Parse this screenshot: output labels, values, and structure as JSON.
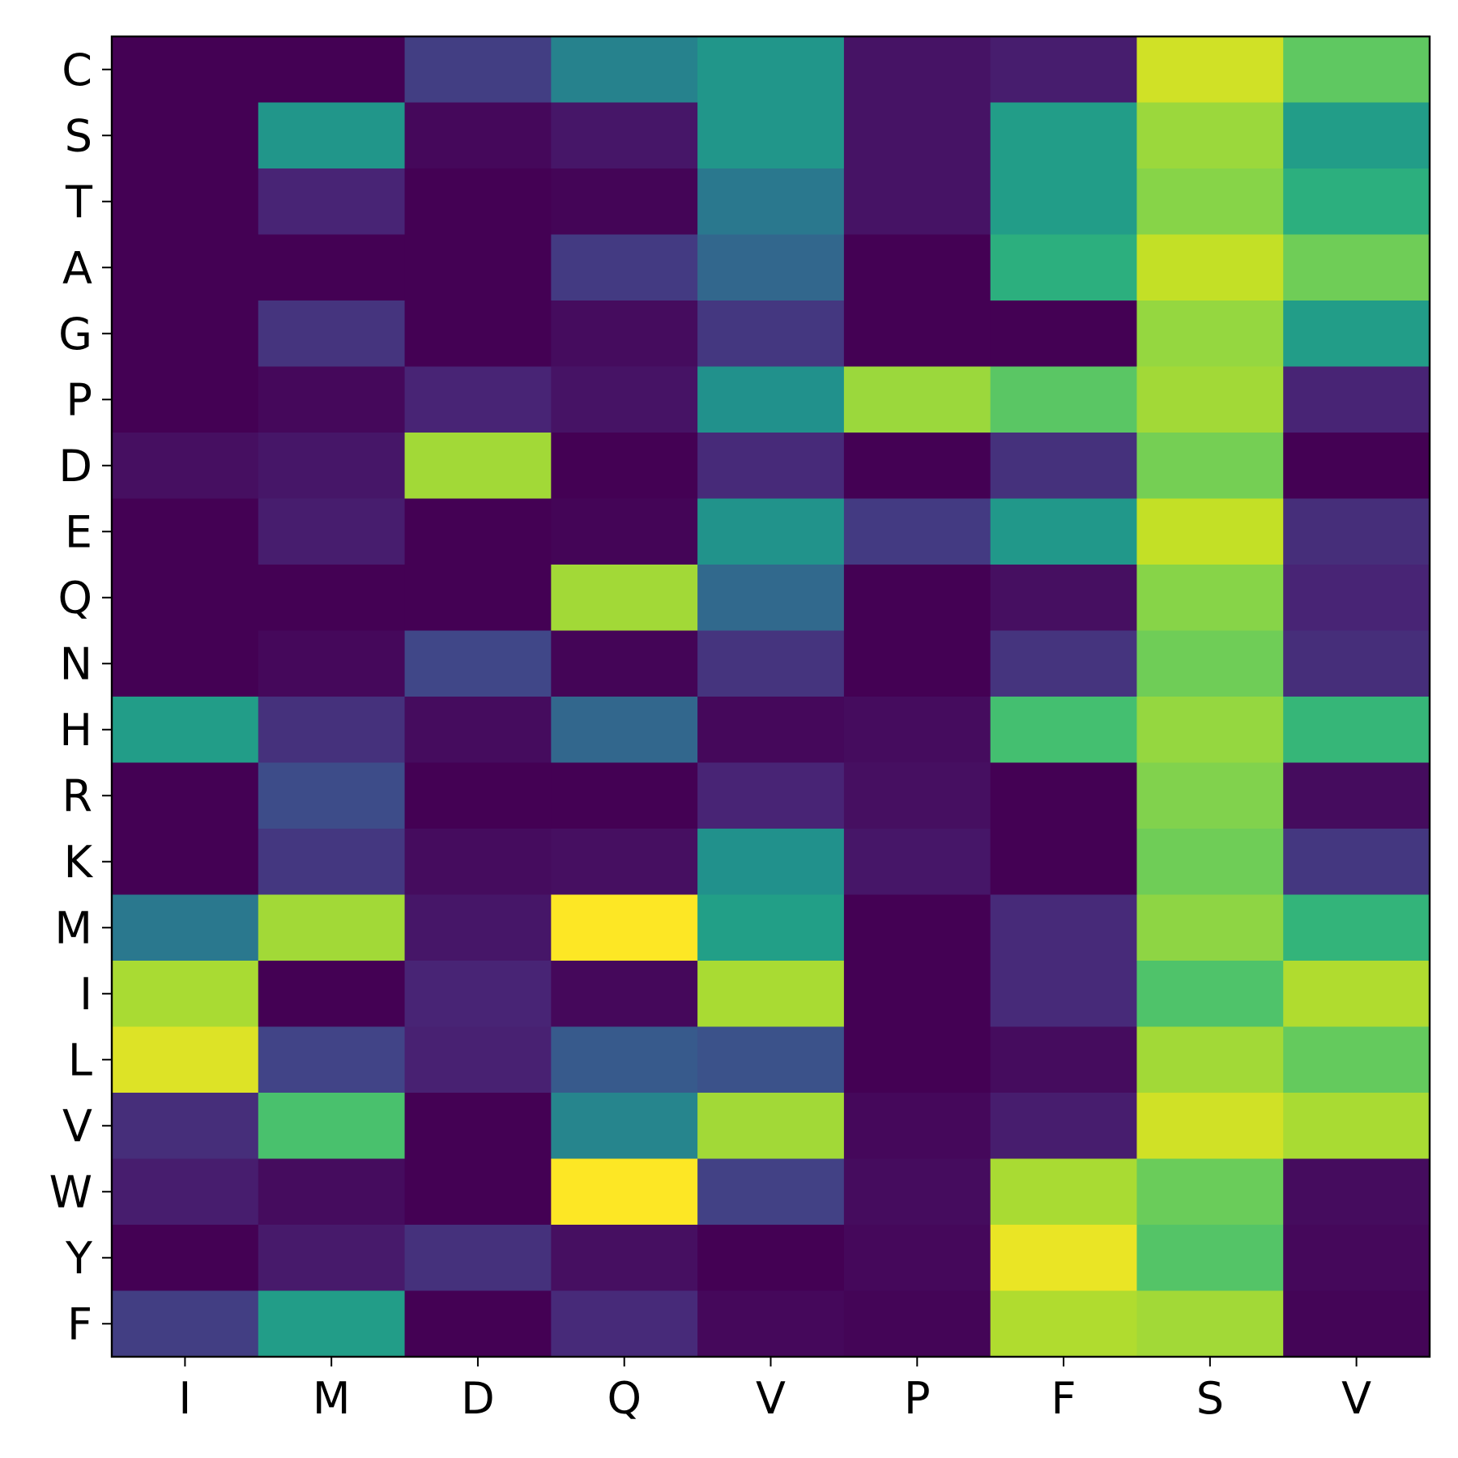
{
  "chart_data": {
    "type": "heatmap",
    "title": "",
    "xlabel": "",
    "ylabel": "",
    "x_categories": [
      "I",
      "M",
      "D",
      "Q",
      "V",
      "P",
      "F",
      "S",
      "V"
    ],
    "y_categories": [
      "C",
      "S",
      "T",
      "A",
      "G",
      "P",
      "D",
      "E",
      "Q",
      "N",
      "H",
      "R",
      "K",
      "M",
      "I",
      "L",
      "V",
      "W",
      "Y",
      "F"
    ],
    "colormap": "viridis",
    "value_range": [
      0,
      1
    ],
    "values": [
      [
        0.0,
        0.0,
        0.18,
        0.44,
        0.52,
        0.05,
        0.08,
        0.93,
        0.75
      ],
      [
        0.0,
        0.52,
        0.02,
        0.06,
        0.52,
        0.05,
        0.55,
        0.85,
        0.55
      ],
      [
        0.0,
        0.1,
        0.0,
        0.01,
        0.4,
        0.05,
        0.55,
        0.82,
        0.63
      ],
      [
        0.0,
        0.0,
        0.0,
        0.17,
        0.33,
        0.0,
        0.63,
        0.91,
        0.78
      ],
      [
        0.0,
        0.15,
        0.0,
        0.03,
        0.16,
        0.0,
        0.0,
        0.84,
        0.55
      ],
      [
        0.0,
        0.02,
        0.1,
        0.05,
        0.5,
        0.85,
        0.74,
        0.86,
        0.1
      ],
      [
        0.04,
        0.06,
        0.86,
        0.0,
        0.12,
        0.0,
        0.14,
        0.79,
        0.0
      ],
      [
        0.0,
        0.08,
        0.0,
        0.01,
        0.51,
        0.17,
        0.53,
        0.91,
        0.13
      ],
      [
        0.0,
        0.0,
        0.0,
        0.86,
        0.34,
        0.0,
        0.04,
        0.82,
        0.1
      ],
      [
        0.0,
        0.02,
        0.21,
        0.01,
        0.15,
        0.0,
        0.15,
        0.78,
        0.13
      ],
      [
        0.55,
        0.14,
        0.03,
        0.33,
        0.02,
        0.03,
        0.7,
        0.84,
        0.66
      ],
      [
        0.0,
        0.23,
        0.0,
        0.0,
        0.1,
        0.04,
        0.0,
        0.81,
        0.03
      ],
      [
        0.0,
        0.16,
        0.03,
        0.04,
        0.5,
        0.06,
        0.0,
        0.78,
        0.16
      ],
      [
        0.4,
        0.86,
        0.06,
        1.0,
        0.56,
        0.0,
        0.12,
        0.83,
        0.65
      ],
      [
        0.87,
        0.0,
        0.1,
        0.02,
        0.87,
        0.0,
        0.12,
        0.72,
        0.88
      ],
      [
        0.95,
        0.2,
        0.09,
        0.28,
        0.25,
        0.0,
        0.03,
        0.86,
        0.76
      ],
      [
        0.13,
        0.71,
        0.0,
        0.45,
        0.86,
        0.02,
        0.08,
        0.93,
        0.87
      ],
      [
        0.08,
        0.03,
        0.0,
        1.0,
        0.19,
        0.03,
        0.87,
        0.77,
        0.03
      ],
      [
        0.0,
        0.07,
        0.14,
        0.04,
        0.0,
        0.02,
        0.97,
        0.73,
        0.02
      ],
      [
        0.18,
        0.55,
        0.0,
        0.12,
        0.02,
        0.01,
        0.88,
        0.86,
        0.01
      ]
    ],
    "grid": false,
    "legend": "none"
  }
}
